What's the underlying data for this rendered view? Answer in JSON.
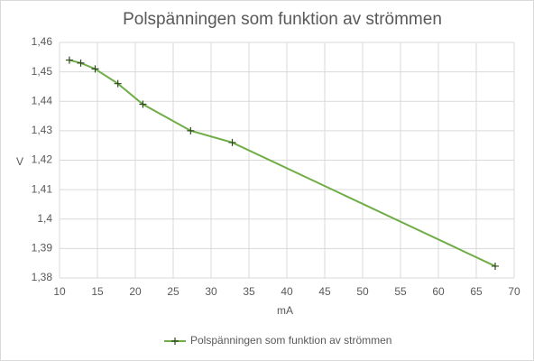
{
  "chart_data": {
    "type": "line",
    "title": "Polspänningen som funktion av strömmen",
    "x_label": "mA",
    "y_label": "V",
    "x": [
      11.3,
      12.8,
      14.7,
      17.7,
      21,
      27.3,
      32.8,
      67.5
    ],
    "series": [
      {
        "name": "Polspänningen som funktion av strömmen",
        "color": "#70ad47",
        "values": [
          1.454,
          1.453,
          1.451,
          1.446,
          1.439,
          1.43,
          1.426,
          1.384
        ]
      }
    ],
    "xlim": [
      10,
      70
    ],
    "xticks": [
      10,
      15,
      20,
      25,
      30,
      35,
      40,
      45,
      50,
      55,
      60,
      65,
      70
    ],
    "ylim": [
      1.38,
      1.46
    ],
    "yticks": [
      {
        "value": 1.38,
        "label": "1,38"
      },
      {
        "value": 1.39,
        "label": "1,39"
      },
      {
        "value": 1.4,
        "label": "1,4"
      },
      {
        "value": 1.41,
        "label": "1,41"
      },
      {
        "value": 1.42,
        "label": "1,42"
      },
      {
        "value": 1.43,
        "label": "1,43"
      },
      {
        "value": 1.44,
        "label": "1,44"
      },
      {
        "value": 1.45,
        "label": "1,45"
      },
      {
        "value": 1.46,
        "label": "1,46"
      }
    ],
    "grid": true,
    "legend": "bottom"
  }
}
